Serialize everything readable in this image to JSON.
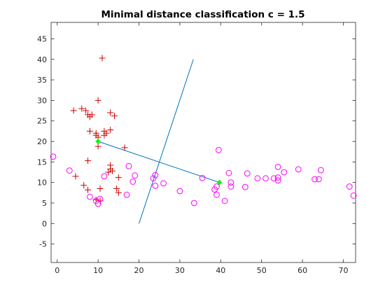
{
  "chart_data": {
    "type": "scatter",
    "title": "Minimal distance classification c = 1.5",
    "xlabel": "",
    "ylabel": "",
    "xlim": [
      -1.5,
      73
    ],
    "ylim": [
      -9.5,
      49
    ],
    "xticks": [
      0,
      10,
      20,
      30,
      40,
      50,
      60,
      70
    ],
    "yticks": [
      -5,
      0,
      5,
      10,
      15,
      20,
      25,
      30,
      35,
      40,
      45
    ],
    "grid": false,
    "series": [
      {
        "marker": "plus",
        "color": "#cc0000",
        "points": [
          [
            11,
            40.3
          ],
          [
            10,
            30
          ],
          [
            4,
            27.5
          ],
          [
            6,
            28
          ],
          [
            7,
            27.5
          ],
          [
            7.5,
            26.5
          ],
          [
            8,
            26
          ],
          [
            8.5,
            26.5
          ],
          [
            13,
            27
          ],
          [
            14,
            26.2
          ],
          [
            8,
            22.5
          ],
          [
            9.5,
            22
          ],
          [
            9.5,
            21.5
          ],
          [
            10,
            21
          ],
          [
            11.5,
            22.5
          ],
          [
            12,
            22
          ],
          [
            11.5,
            21.5
          ],
          [
            13,
            22.8
          ],
          [
            10,
            18.8
          ],
          [
            16.5,
            18.5
          ],
          [
            7.5,
            15.3
          ],
          [
            13,
            14.2
          ],
          [
            13,
            13.3
          ],
          [
            12.5,
            12.5
          ],
          [
            13.5,
            12.8
          ],
          [
            4.5,
            11.5
          ],
          [
            15,
            11.2
          ],
          [
            6.5,
            9.3
          ],
          [
            7.5,
            8.2
          ],
          [
            10.5,
            8.5
          ],
          [
            14.5,
            8.5
          ],
          [
            15,
            7.5
          ],
          [
            9.5,
            5.8
          ],
          [
            10.5,
            5.5
          ]
        ]
      },
      {
        "marker": "circle",
        "color": "#ff00ff",
        "points": [
          [
            -1,
            16.3
          ],
          [
            3,
            12.9
          ],
          [
            11.5,
            11.5
          ],
          [
            17.5,
            14
          ],
          [
            19,
            11.7
          ],
          [
            18.5,
            10.2
          ],
          [
            17,
            7
          ],
          [
            23.5,
            11
          ],
          [
            24,
            11.8
          ],
          [
            24,
            9.2
          ],
          [
            26,
            9.8
          ],
          [
            30,
            7.9
          ],
          [
            8,
            6.5
          ],
          [
            9.5,
            5.5
          ],
          [
            10.5,
            6
          ],
          [
            10,
            4.8
          ],
          [
            33.5,
            5
          ],
          [
            35.5,
            11.1
          ],
          [
            38.5,
            8.3
          ],
          [
            39,
            9
          ],
          [
            39,
            7
          ],
          [
            39.5,
            17.9
          ],
          [
            41,
            5.5
          ],
          [
            42,
            12.3
          ],
          [
            42.5,
            10
          ],
          [
            42.5,
            9
          ],
          [
            46,
            8.9
          ],
          [
            46.5,
            12.2
          ],
          [
            49,
            11
          ],
          [
            51,
            11
          ],
          [
            53,
            11
          ],
          [
            54,
            10.5
          ],
          [
            54,
            11.2
          ],
          [
            54,
            13.8
          ],
          [
            55.5,
            12.5
          ],
          [
            59,
            13.2
          ],
          [
            63,
            10.8
          ],
          [
            64,
            10.8
          ],
          [
            64.5,
            13
          ],
          [
            71.5,
            9
          ],
          [
            72.5,
            6.8
          ]
        ]
      }
    ],
    "segments": [
      {
        "color": "#0072bd",
        "from": [
          10,
          20
        ],
        "to": [
          39.7,
          10
        ]
      },
      {
        "color": "#0072bd",
        "from": [
          20,
          0
        ],
        "to": [
          33.3,
          40
        ]
      }
    ],
    "centroids": {
      "color": "#00ff00",
      "points": [
        [
          10,
          20
        ],
        [
          39.7,
          10
        ]
      ]
    }
  }
}
